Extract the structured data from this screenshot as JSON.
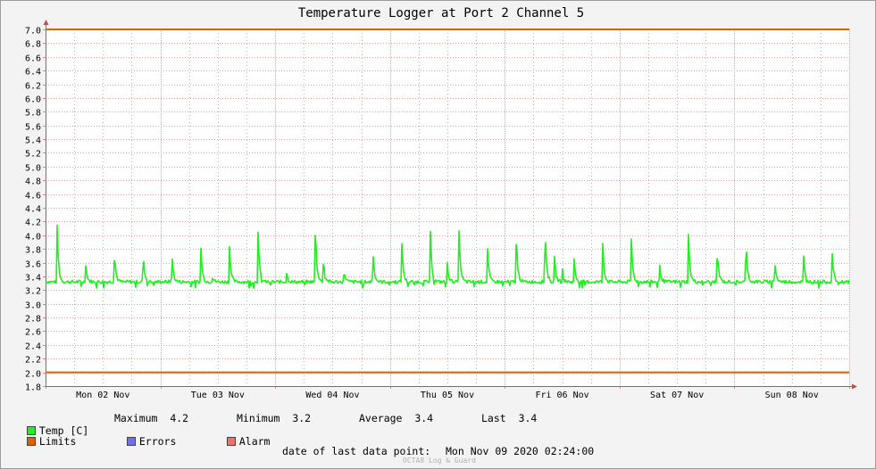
{
  "chart_data": {
    "type": "line",
    "title": "Temperature Logger at Port 2 Channel 5",
    "ylim": [
      1.8,
      7.0
    ],
    "yticks": [
      "7.0",
      "6.8",
      "6.6",
      "6.4",
      "6.2",
      "6.0",
      "5.8",
      "5.6",
      "5.4",
      "5.2",
      "5.0",
      "4.8",
      "4.6",
      "4.4",
      "4.2",
      "4.0",
      "3.8",
      "3.6",
      "3.4",
      "3.2",
      "3.0",
      "2.8",
      "2.6",
      "2.4",
      "2.2",
      "2.0",
      "1.8"
    ],
    "xlim_days": [
      0,
      7.0
    ],
    "xticks": [
      {
        "label": "Mon 02 Nov",
        "day": 0.5
      },
      {
        "label": "Tue 03 Nov",
        "day": 1.5
      },
      {
        "label": "Wed 04 Nov",
        "day": 2.5
      },
      {
        "label": "Thu 05 Nov",
        "day": 3.5
      },
      {
        "label": "Fri 06 Nov",
        "day": 4.5
      },
      {
        "label": "Sat 07 Nov",
        "day": 5.5
      },
      {
        "label": "Sun 08 Nov",
        "day": 6.5
      }
    ],
    "grid": true,
    "limits": {
      "upper": 7.0,
      "lower": 2.0
    },
    "series": [
      {
        "name": "Temp [C]",
        "color": "#22ee22",
        "baseline": 3.32,
        "spikes": [
          [
            0.1,
            4.2
          ],
          [
            0.35,
            3.58
          ],
          [
            0.6,
            3.78
          ],
          [
            0.85,
            3.76
          ],
          [
            1.1,
            3.78
          ],
          [
            1.35,
            3.96
          ],
          [
            1.45,
            3.42
          ],
          [
            1.6,
            3.94
          ],
          [
            1.85,
            4.14
          ],
          [
            2.1,
            3.45
          ],
          [
            2.35,
            4.24
          ],
          [
            2.42,
            3.7
          ],
          [
            2.6,
            3.5
          ],
          [
            2.85,
            3.86
          ],
          [
            3.1,
            4.08
          ],
          [
            3.35,
            4.18
          ],
          [
            3.5,
            3.58
          ],
          [
            3.6,
            4.16
          ],
          [
            3.85,
            3.8
          ],
          [
            4.1,
            4.08
          ],
          [
            4.35,
            4.22
          ],
          [
            4.43,
            3.78
          ],
          [
            4.5,
            3.55
          ],
          [
            4.6,
            3.78
          ],
          [
            4.85,
            4.06
          ],
          [
            5.1,
            4.08
          ],
          [
            5.35,
            3.56
          ],
          [
            5.6,
            4.0
          ],
          [
            5.85,
            3.86
          ],
          [
            6.1,
            3.98
          ],
          [
            6.35,
            3.68
          ],
          [
            6.6,
            3.8
          ],
          [
            6.85,
            3.8
          ]
        ]
      },
      {
        "name": "Limits",
        "color": "#e06000"
      }
    ],
    "legend": {
      "stats": [
        {
          "label": "Maximum",
          "value": "4.2"
        },
        {
          "label": "Minimum",
          "value": "3.2"
        },
        {
          "label": "Average",
          "value": "3.4"
        },
        {
          "label": "Last",
          "value": "3.4"
        }
      ],
      "other": [
        {
          "name": "Errors",
          "color": "#6f6ff0"
        },
        {
          "name": "Alarm",
          "color": "#f07070"
        }
      ]
    },
    "last_point_label": "date of last data point:",
    "last_point_value": "Mon Nov 09 2020 02:24:00",
    "watermark": "OCTA8 Log & Guard"
  }
}
